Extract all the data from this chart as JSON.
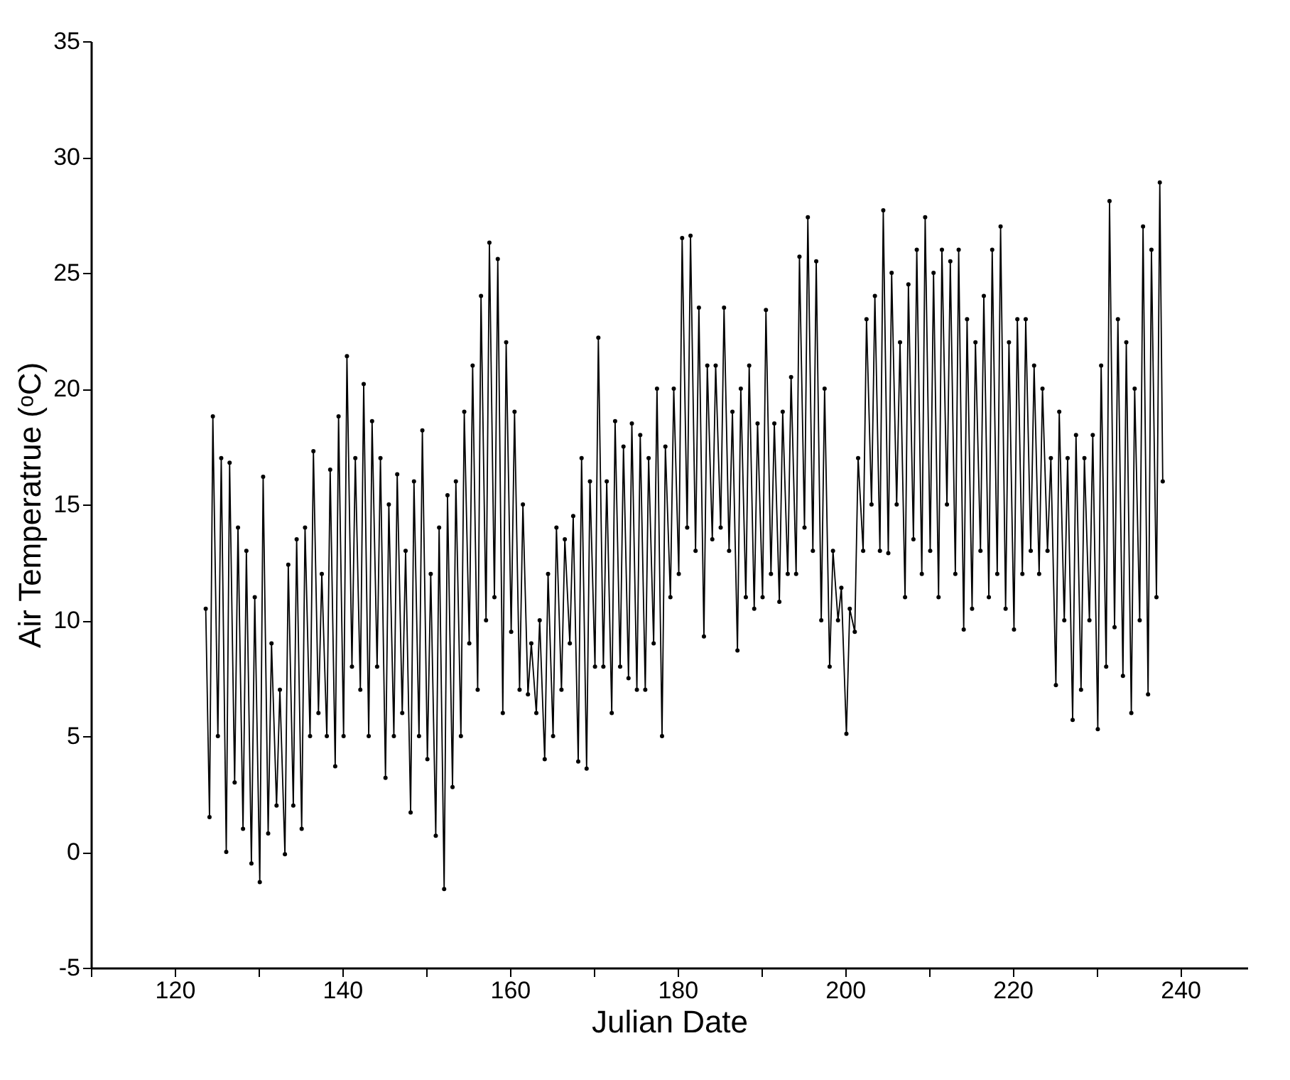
{
  "chart_data": {
    "type": "line",
    "xlabel": "Julian Date",
    "ylabel": "Air Temperatrue (ᵒC)",
    "xlim": [
      110,
      248
    ],
    "ylim": [
      -5,
      35
    ],
    "xticks": [
      {
        "value": 110,
        "label": null
      },
      120,
      {
        "value": 130,
        "label": null
      },
      140,
      {
        "value": 150,
        "label": null
      },
      160,
      {
        "value": 170,
        "label": null
      },
      180,
      {
        "value": 190,
        "label": null
      },
      200,
      {
        "value": 210,
        "label": null
      },
      220,
      {
        "value": 230,
        "label": null
      },
      240
    ],
    "yticks": [
      -5,
      0,
      5,
      10,
      15,
      20,
      25,
      30,
      35
    ],
    "grid": false,
    "marker": "circle",
    "line_style": "solid",
    "series": [
      {
        "color": "#000000",
        "x": [
          123.7,
          124.15,
          124.55,
          125.15,
          125.55,
          126.15,
          126.55,
          127.15,
          127.55,
          128.15,
          128.55,
          129.15,
          129.55,
          130.15,
          130.55,
          131.15,
          131.55,
          132.15,
          132.55,
          133.15,
          133.55,
          134.15,
          134.55,
          135.15,
          135.55,
          136.15,
          136.55,
          137.15,
          137.55,
          138.15,
          138.55,
          139.15,
          139.55,
          140.15,
          140.55,
          141.15,
          141.55,
          142.15,
          142.55,
          143.15,
          143.55,
          144.15,
          144.55,
          145.15,
          145.55,
          146.15,
          146.55,
          147.15,
          147.55,
          148.15,
          148.55,
          149.15,
          149.55,
          150.15,
          150.55,
          151.15,
          151.55,
          152.15,
          152.55,
          153.15,
          153.55,
          154.15,
          154.55,
          155.15,
          155.55,
          156.15,
          156.55,
          157.15,
          157.55,
          158.15,
          158.55,
          159.15,
          159.55,
          160.15,
          160.55,
          161.15,
          161.55,
          162.15,
          162.55,
          163.15,
          163.55,
          164.15,
          164.55,
          165.15,
          165.55,
          166.15,
          166.55,
          167.15,
          167.55,
          168.15,
          168.55,
          169.15,
          169.55,
          170.15,
          170.55,
          171.15,
          171.55,
          172.15,
          172.55,
          173.15,
          173.55,
          174.15,
          174.55,
          175.15,
          175.55,
          176.15,
          176.55,
          177.15,
          177.55,
          178.15,
          178.55,
          179.15,
          179.55,
          180.15,
          180.55,
          181.15,
          181.55,
          182.15,
          182.55,
          183.15,
          183.55,
          184.15,
          184.55,
          185.15,
          185.55,
          186.15,
          186.55,
          187.15,
          187.55,
          188.15,
          188.55,
          189.15,
          189.55,
          190.15,
          190.55,
          191.15,
          191.55,
          192.15,
          192.55,
          193.15,
          193.55,
          194.15,
          194.55,
          195.15,
          195.55,
          196.15,
          196.55,
          197.15,
          197.55,
          198.15,
          198.55,
          199.15,
          199.55,
          200.15,
          200.55,
          201.15,
          201.55,
          202.15,
          202.55,
          203.15,
          203.55,
          204.15,
          204.55,
          205.15,
          205.55,
          206.15,
          206.55,
          207.15,
          207.55,
          208.15,
          208.55,
          209.15,
          209.55,
          210.15,
          210.55,
          211.15,
          211.55,
          212.15,
          212.55,
          213.15,
          213.55,
          214.15,
          214.55,
          215.15,
          215.55,
          216.15,
          216.55,
          217.15,
          217.55,
          218.15,
          218.55,
          219.15,
          219.55,
          220.15,
          220.55,
          221.15,
          221.55,
          222.15,
          222.55,
          223.15,
          223.55,
          224.15,
          224.55,
          225.15,
          225.55,
          226.15,
          226.55,
          227.15,
          227.55,
          228.15,
          228.55,
          229.15,
          229.55,
          230.15,
          230.55,
          231.15,
          231.55,
          232.15,
          232.55,
          233.15,
          233.55,
          234.15,
          234.55,
          235.15,
          235.55,
          236.15,
          236.55,
          237.15,
          237.55,
          237.9
        ],
        "values": [
          10.5,
          1.5,
          18.8,
          5,
          17,
          0,
          16.8,
          3,
          14,
          1,
          13,
          -0.5,
          11,
          -1.3,
          16.2,
          0.8,
          9,
          2,
          7,
          -0.1,
          12.4,
          2,
          13.5,
          1,
          14,
          5,
          17.3,
          6,
          12,
          5,
          16.5,
          3.7,
          18.8,
          5,
          21.4,
          8,
          17,
          7,
          20.2,
          5,
          18.6,
          8,
          17,
          3.2,
          15,
          5,
          16.3,
          6,
          13,
          1.7,
          16,
          5,
          18.2,
          4,
          12,
          0.7,
          14,
          -1.6,
          15.4,
          2.8,
          16,
          5,
          19,
          9,
          21,
          7,
          24,
          10,
          26.3,
          11,
          25.6,
          6,
          22,
          9.5,
          19,
          7,
          15,
          6.8,
          9,
          6,
          10,
          4,
          12,
          5,
          14,
          7,
          13.5,
          9,
          14.5,
          3.9,
          17,
          3.6,
          16,
          8,
          22.2,
          8,
          16,
          6,
          18.6,
          8,
          17.5,
          7.5,
          18.5,
          7,
          18,
          7,
          17,
          9,
          20,
          5,
          17.5,
          11,
          20,
          12,
          26.5,
          14,
          26.6,
          13,
          23.5,
          9.3,
          21,
          13.5,
          21,
          14,
          23.5,
          13,
          19,
          8.7,
          20,
          11,
          21,
          10.5,
          18.5,
          11,
          23.4,
          12,
          18.5,
          10.8,
          19,
          12,
          20.5,
          12,
          25.7,
          14,
          27.4,
          13,
          25.5,
          10,
          20,
          8,
          13,
          10,
          11.4,
          5.1,
          10.5,
          9.5,
          17,
          13,
          23,
          15,
          24,
          13,
          27.7,
          12.9,
          25,
          15,
          22,
          11,
          24.5,
          13.5,
          26,
          12,
          27.4,
          13,
          25,
          11,
          26,
          15,
          25.5,
          12,
          26,
          9.6,
          23,
          10.5,
          22,
          13,
          24,
          11,
          26,
          12,
          27,
          10.5,
          22,
          9.6,
          23,
          12,
          23,
          13,
          21,
          12,
          20,
          13,
          17,
          7.2,
          19,
          10,
          17,
          5.7,
          18,
          7,
          17,
          10,
          18,
          5.3,
          21,
          8,
          28.1,
          9.7,
          23,
          7.6,
          22,
          6,
          20,
          10,
          27,
          6.8,
          26,
          11,
          28.9,
          16
        ]
      }
    ]
  }
}
